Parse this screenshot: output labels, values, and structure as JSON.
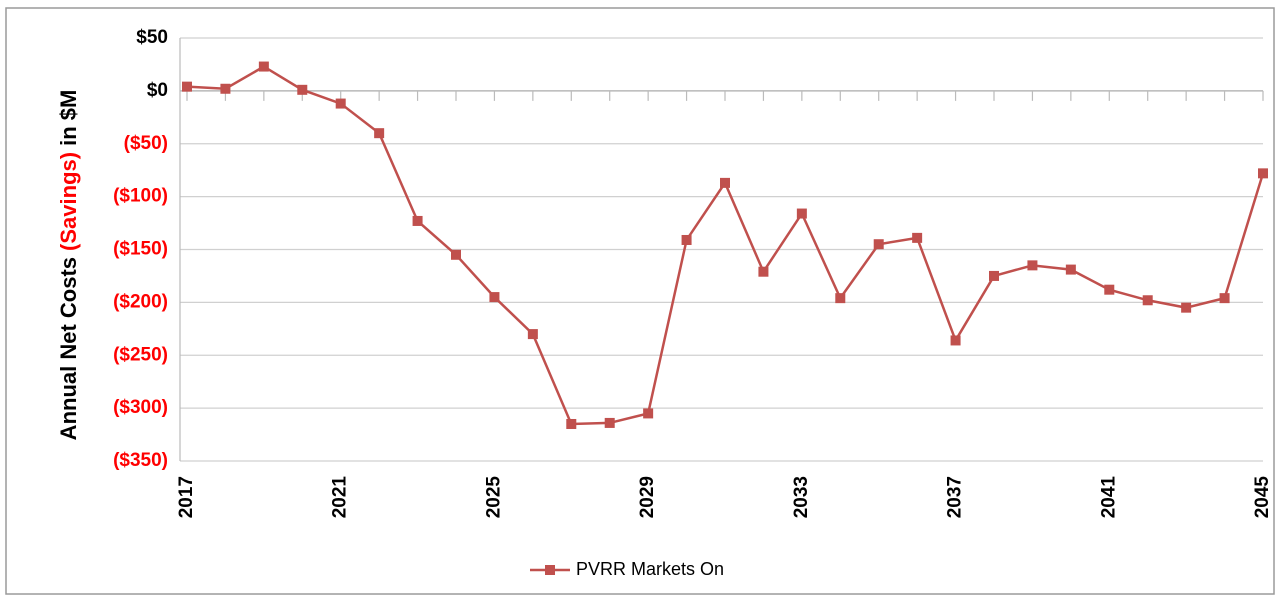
{
  "chart_data": {
    "type": "line",
    "ylabel": [
      "Annual Net Costs",
      "(Savings)",
      "in $M"
    ],
    "ylabel_colors": [
      "#000000",
      "#ff0000",
      "#000000"
    ],
    "x": [
      2017,
      2018,
      2019,
      2020,
      2021,
      2022,
      2023,
      2024,
      2025,
      2026,
      2027,
      2028,
      2029,
      2030,
      2031,
      2032,
      2033,
      2034,
      2035,
      2036,
      2037,
      2038,
      2039,
      2040,
      2041,
      2042,
      2043,
      2044,
      2045
    ],
    "xlim": [
      2017,
      2045
    ],
    "xticks": [
      2017,
      2021,
      2025,
      2029,
      2033,
      2037,
      2041,
      2045
    ],
    "ylim": [
      -350,
      50
    ],
    "yticks": [
      {
        "value": 50,
        "label": "$50"
      },
      {
        "value": 0,
        "label": "$0"
      },
      {
        "value": -50,
        "label": "($50)"
      },
      {
        "value": -100,
        "label": "($100)"
      },
      {
        "value": -150,
        "label": "($150)"
      },
      {
        "value": -200,
        "label": "($200)"
      },
      {
        "value": -250,
        "label": "($250)"
      },
      {
        "value": -300,
        "label": "($300)"
      },
      {
        "value": -350,
        "label": "($350)"
      }
    ],
    "ytick_label_colors": {
      "positive": "#000000",
      "negative": "#ff0000"
    },
    "grid": true,
    "legend": "bottom",
    "series": [
      {
        "name": "PVRR Markets On",
        "color": "#c0504d",
        "values": [
          4,
          2,
          23,
          1,
          -12,
          -40,
          -123,
          -155,
          -195,
          -230,
          -315,
          -314,
          -305,
          -141,
          -87,
          -171,
          -116,
          -196,
          -145,
          -139,
          -236,
          -175,
          -165,
          -169,
          -188,
          -198,
          -205,
          -196,
          -78
        ]
      }
    ]
  }
}
